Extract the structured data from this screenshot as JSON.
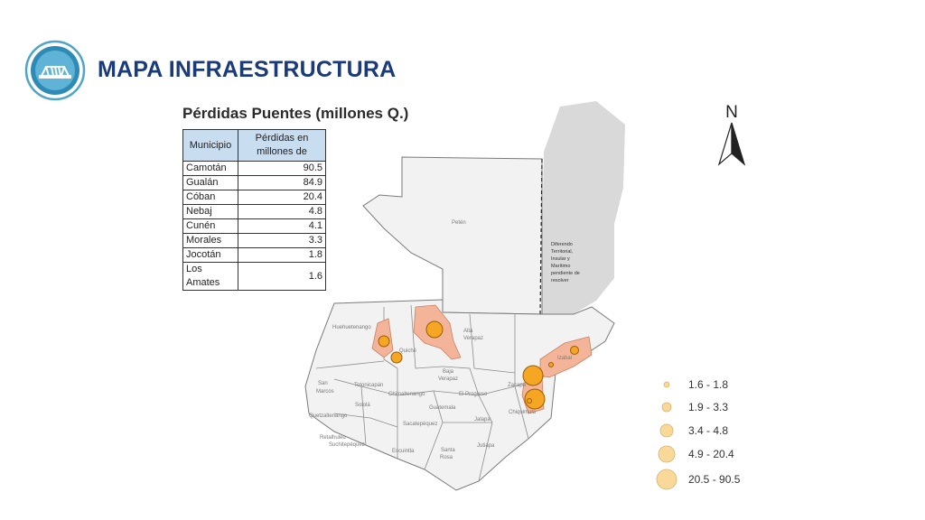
{
  "header": {
    "title": "MAPA INFRAESTRUCTURA",
    "logo_icon": "bridge-icon",
    "title_color": "#1b3a7a"
  },
  "table": {
    "title": "Pérdidas Puentes (millones Q.)",
    "headers": [
      "Municipio",
      "Pérdidas en millones de"
    ],
    "rows": [
      {
        "municipio": "Camotán",
        "perdidas": "90.5"
      },
      {
        "municipio": "Gualán",
        "perdidas": "84.9"
      },
      {
        "municipio": "Cóban",
        "perdidas": "20.4"
      },
      {
        "municipio": "Nebaj",
        "perdidas": "4.8"
      },
      {
        "municipio": "Cunén",
        "perdidas": "4.1"
      },
      {
        "municipio": "Morales",
        "perdidas": "3.3"
      },
      {
        "municipio": "Jocotán",
        "perdidas": "1.8"
      },
      {
        "municipio": "Los Amates",
        "perdidas": "1.6"
      }
    ],
    "header_color": "#c9ddf0"
  },
  "map": {
    "north_label": "N",
    "region_labels": {
      "peten": "Petén",
      "diferendo": [
        "Diferendo",
        "Territorial,",
        "Insular y",
        "Marítimo",
        "pendiente de",
        "resolver"
      ],
      "huehuetenango": "Huehuetenango",
      "alta_verapaz": [
        "Alta",
        "Verapaz"
      ],
      "quiche": "Quiché",
      "izabal": "Izabal",
      "baja_verapaz": [
        "Baja",
        "Verapaz"
      ],
      "san_marcos": [
        "San",
        "Marcos"
      ],
      "totonicapan": "Totonicapán",
      "solola": "Sololá",
      "chimaltenango": "Chimaltenango",
      "el_progreso": "El Progreso",
      "zacapa": "Zacapa",
      "guatemala": "Guatemala",
      "quetzaltenango": "Quetzaltenango",
      "sacatepequez": "Sacatepéquez",
      "chiquimula": "Chiquimula",
      "jalapa": "Jalapa",
      "retalhuleu": "Retalhuleu",
      "suchitepequez": "Suchitepéquez",
      "escuintla": "Escuintla",
      "santa_rosa": [
        "Santa",
        "Rosa"
      ],
      "jutiapa": "Jutiapa"
    },
    "colors": {
      "land": "#f2f2f2",
      "border": "#7a7a7a",
      "disputed": "#d9d9d9",
      "affected": "#f4b49a",
      "bubble": "#f5a623",
      "bubble_stroke": "#b36b00"
    }
  },
  "legend": {
    "items": [
      {
        "label": "1.6 - 1.8"
      },
      {
        "label": "1.9 - 3.3"
      },
      {
        "label": "3.4 - 4.8"
      },
      {
        "label": "4.9 - 20.4"
      },
      {
        "label": "20.5 - 90.5"
      }
    ],
    "fill_color": "#f9d99a"
  }
}
